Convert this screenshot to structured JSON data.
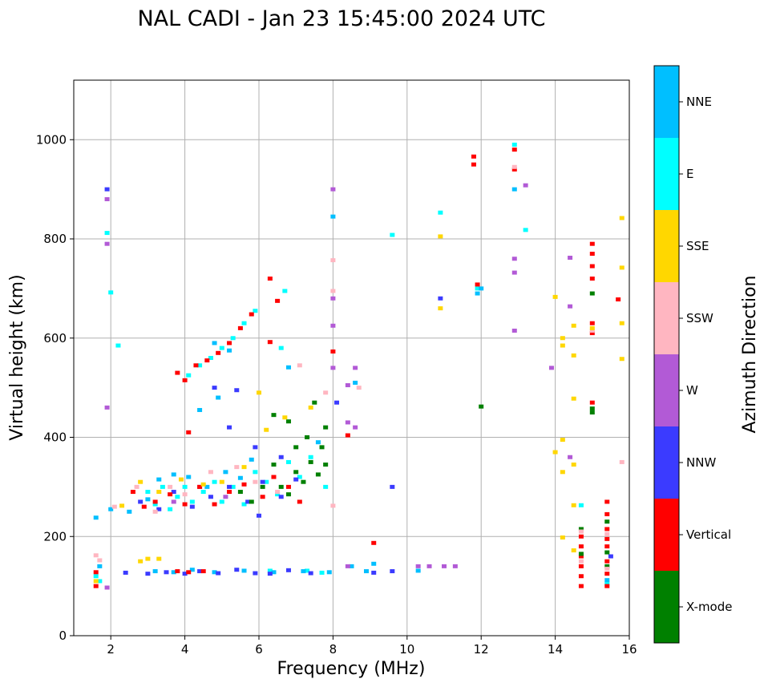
{
  "chart_data": {
    "type": "scatter",
    "title": "NAL CADI - Jan 23 15:45:00 2024 UTC",
    "xlabel": "Frequency (MHz)",
    "ylabel": "Virtual height (km)",
    "xlim": [
      1,
      16
    ],
    "ylim": [
      0,
      1120
    ],
    "xticks": [
      2,
      4,
      6,
      8,
      10,
      12,
      14,
      16
    ],
    "yticks": [
      0,
      200,
      400,
      600,
      800,
      1000
    ],
    "grid": true,
    "colorbar": {
      "label": "Azimuth Direction",
      "categories": [
        {
          "name": "X-mode",
          "color": "#008000"
        },
        {
          "name": "Vertical",
          "color": "#ff0000"
        },
        {
          "name": "NNW",
          "color": "#3b3bff"
        },
        {
          "name": "W",
          "color": "#b25ad6"
        },
        {
          "name": "SSW",
          "color": "#ffb6c1"
        },
        {
          "name": "SSE",
          "color": "#ffd700"
        },
        {
          "name": "E",
          "color": "#00ffff"
        },
        {
          "name": "NNE",
          "color": "#00bfff"
        }
      ]
    },
    "series": [
      {
        "name": "E",
        "points": [
          [
            1.9,
            812
          ],
          [
            2.0,
            692
          ],
          [
            2.2,
            585
          ],
          [
            3.0,
            290
          ],
          [
            3.2,
            265
          ],
          [
            3.4,
            300
          ],
          [
            3.6,
            255
          ],
          [
            3.8,
            280
          ],
          [
            4.0,
            300
          ],
          [
            4.2,
            270
          ],
          [
            4.5,
            290
          ],
          [
            4.8,
            310
          ],
          [
            5.0,
            270
          ],
          [
            5.3,
            300
          ],
          [
            5.6,
            265
          ],
          [
            5.9,
            330
          ],
          [
            6.2,
            310
          ],
          [
            6.5,
            285
          ],
          [
            6.8,
            350
          ],
          [
            7.1,
            320
          ],
          [
            7.4,
            360
          ],
          [
            7.8,
            300
          ],
          [
            4.1,
            525
          ],
          [
            4.4,
            545
          ],
          [
            4.7,
            560
          ],
          [
            5.0,
            580
          ],
          [
            5.3,
            600
          ],
          [
            5.6,
            630
          ],
          [
            5.9,
            655
          ],
          [
            6.7,
            695
          ],
          [
            6.6,
            580
          ],
          [
            9.6,
            808
          ],
          [
            10.9,
            853
          ],
          [
            12.9,
            990
          ],
          [
            13.2,
            818
          ],
          [
            11.9,
            700
          ],
          [
            14.7,
            263
          ],
          [
            15.4,
            105
          ],
          [
            6.3,
            131
          ],
          [
            7.3,
            131
          ],
          [
            7.7,
            127
          ],
          [
            1.6,
            120
          ],
          [
            1.7,
            110
          ]
        ]
      },
      {
        "name": "NNE",
        "points": [
          [
            1.6,
            238
          ],
          [
            2.0,
            255
          ],
          [
            2.5,
            250
          ],
          [
            3.0,
            275
          ],
          [
            3.3,
            315
          ],
          [
            3.7,
            325
          ],
          [
            4.1,
            320
          ],
          [
            4.6,
            300
          ],
          [
            5.1,
            330
          ],
          [
            5.5,
            318
          ],
          [
            5.8,
            355
          ],
          [
            7.6,
            390
          ],
          [
            4.4,
            455
          ],
          [
            4.9,
            480
          ],
          [
            6.8,
            541
          ],
          [
            4.8,
            590
          ],
          [
            5.2,
            575
          ],
          [
            8.0,
            845
          ],
          [
            8.6,
            510
          ],
          [
            12.9,
            900
          ],
          [
            11.9,
            690
          ],
          [
            12.0,
            700
          ],
          [
            3.2,
            130
          ],
          [
            3.7,
            128
          ],
          [
            4.2,
            133
          ],
          [
            4.8,
            128
          ],
          [
            5.6,
            131
          ],
          [
            6.4,
            128
          ],
          [
            7.2,
            130
          ],
          [
            7.9,
            128
          ],
          [
            8.5,
            140
          ],
          [
            8.9,
            130
          ],
          [
            9.1,
            145
          ],
          [
            10.3,
            131
          ],
          [
            15.4,
            112
          ],
          [
            1.7,
            140
          ]
        ]
      },
      {
        "name": "NNW",
        "points": [
          [
            1.9,
            900
          ],
          [
            2.8,
            270
          ],
          [
            3.3,
            255
          ],
          [
            3.7,
            290
          ],
          [
            4.2,
            260
          ],
          [
            4.7,
            280
          ],
          [
            5.2,
            300
          ],
          [
            5.7,
            270
          ],
          [
            6.1,
            310
          ],
          [
            6.6,
            280
          ],
          [
            7.0,
            315
          ],
          [
            5.2,
            420
          ],
          [
            5.9,
            380
          ],
          [
            6.0,
            242
          ],
          [
            4.8,
            500
          ],
          [
            5.4,
            495
          ],
          [
            6.6,
            360
          ],
          [
            8.1,
            470
          ],
          [
            2.4,
            127
          ],
          [
            3.0,
            125
          ],
          [
            3.5,
            128
          ],
          [
            4.0,
            125
          ],
          [
            4.4,
            130
          ],
          [
            4.9,
            126
          ],
          [
            5.4,
            133
          ],
          [
            5.9,
            126
          ],
          [
            6.3,
            125
          ],
          [
            6.8,
            132
          ],
          [
            7.4,
            126
          ],
          [
            9.1,
            127
          ],
          [
            9.6,
            300
          ],
          [
            9.6,
            130
          ],
          [
            10.9,
            680
          ],
          [
            15.5,
            160
          ]
        ]
      },
      {
        "name": "W",
        "points": [
          [
            1.9,
            880
          ],
          [
            1.9,
            790
          ],
          [
            1.9,
            460
          ],
          [
            8.0,
            900
          ],
          [
            8.0,
            680
          ],
          [
            8.0,
            625
          ],
          [
            8.0,
            540
          ],
          [
            8.4,
            505
          ],
          [
            8.4,
            430
          ],
          [
            8.6,
            420
          ],
          [
            8.6,
            540
          ],
          [
            10.3,
            140
          ],
          [
            10.6,
            140
          ],
          [
            11.0,
            140
          ],
          [
            11.3,
            140
          ],
          [
            12.9,
            760
          ],
          [
            12.9,
            732
          ],
          [
            12.9,
            615
          ],
          [
            13.2,
            908
          ],
          [
            13.9,
            540
          ],
          [
            14.4,
            762
          ],
          [
            14.4,
            664
          ],
          [
            14.4,
            360
          ],
          [
            3.7,
            270
          ],
          [
            4.4,
            300
          ],
          [
            5.1,
            280
          ],
          [
            8.4,
            140
          ],
          [
            1.9,
            97
          ]
        ]
      },
      {
        "name": "Vertical",
        "points": [
          [
            2.6,
            290
          ],
          [
            2.9,
            260
          ],
          [
            3.2,
            270
          ],
          [
            3.6,
            285
          ],
          [
            4.0,
            265
          ],
          [
            4.4,
            300
          ],
          [
            4.8,
            265
          ],
          [
            5.2,
            290
          ],
          [
            5.6,
            305
          ],
          [
            6.1,
            280
          ],
          [
            6.4,
            320
          ],
          [
            6.8,
            300
          ],
          [
            7.1,
            270
          ],
          [
            3.8,
            530
          ],
          [
            4.0,
            515
          ],
          [
            4.3,
            545
          ],
          [
            4.6,
            555
          ],
          [
            4.9,
            570
          ],
          [
            5.2,
            590
          ],
          [
            5.5,
            620
          ],
          [
            5.8,
            648
          ],
          [
            6.3,
            720
          ],
          [
            6.5,
            675
          ],
          [
            6.3,
            592
          ],
          [
            4.1,
            410
          ],
          [
            8.0,
            573
          ],
          [
            8.4,
            404
          ],
          [
            9.1,
            187
          ],
          [
            3.8,
            130
          ],
          [
            4.1,
            128
          ],
          [
            4.5,
            130
          ],
          [
            11.8,
            966
          ],
          [
            11.8,
            950
          ],
          [
            12.9,
            980
          ],
          [
            12.9,
            940
          ],
          [
            11.9,
            708
          ],
          [
            15.0,
            790
          ],
          [
            15.0,
            770
          ],
          [
            15.0,
            745
          ],
          [
            15.0,
            720
          ],
          [
            15.0,
            630
          ],
          [
            15.0,
            610
          ],
          [
            15.0,
            470
          ],
          [
            15.7,
            678
          ],
          [
            14.7,
            200
          ],
          [
            14.7,
            180
          ],
          [
            14.7,
            160
          ],
          [
            14.7,
            140
          ],
          [
            14.7,
            120
          ],
          [
            14.7,
            100
          ],
          [
            15.4,
            270
          ],
          [
            15.4,
            245
          ],
          [
            15.4,
            215
          ],
          [
            15.4,
            195
          ],
          [
            15.4,
            180
          ],
          [
            15.4,
            150
          ],
          [
            15.4,
            125
          ],
          [
            15.4,
            100
          ],
          [
            1.6,
            128
          ],
          [
            1.6,
            100
          ]
        ]
      },
      {
        "name": "X-mode",
        "points": [
          [
            5.5,
            290
          ],
          [
            5.8,
            270
          ],
          [
            6.1,
            300
          ],
          [
            6.4,
            345
          ],
          [
            6.6,
            300
          ],
          [
            6.8,
            285
          ],
          [
            7.0,
            330
          ],
          [
            7.2,
            310
          ],
          [
            7.4,
            350
          ],
          [
            7.6,
            325
          ],
          [
            7.8,
            345
          ],
          [
            6.4,
            445
          ],
          [
            6.8,
            432
          ],
          [
            7.0,
            380
          ],
          [
            7.3,
            400
          ],
          [
            7.5,
            470
          ],
          [
            7.7,
            380
          ],
          [
            7.8,
            420
          ],
          [
            12.0,
            462
          ],
          [
            15.0,
            458
          ],
          [
            15.0,
            450
          ],
          [
            15.0,
            690
          ],
          [
            15.4,
            230
          ],
          [
            15.4,
            168
          ],
          [
            15.4,
            140
          ],
          [
            14.7,
            215
          ],
          [
            14.7,
            165
          ]
        ]
      },
      {
        "name": "SSW",
        "points": [
          [
            2.1,
            260
          ],
          [
            2.7,
            300
          ],
          [
            3.2,
            250
          ],
          [
            3.6,
            300
          ],
          [
            4.0,
            285
          ],
          [
            4.7,
            330
          ],
          [
            5.4,
            340
          ],
          [
            5.9,
            310
          ],
          [
            6.5,
            290
          ],
          [
            7.1,
            545
          ],
          [
            7.8,
            490
          ],
          [
            8.0,
            757
          ],
          [
            8.0,
            695
          ],
          [
            8.0,
            262
          ],
          [
            8.7,
            500
          ],
          [
            12.9,
            945
          ],
          [
            15.0,
            615
          ],
          [
            15.8,
            350
          ],
          [
            14.7,
            210
          ],
          [
            14.7,
            150
          ],
          [
            15.4,
            205
          ],
          [
            15.4,
            135
          ],
          [
            1.6,
            162
          ],
          [
            1.7,
            152
          ]
        ]
      },
      {
        "name": "SSE",
        "points": [
          [
            2.3,
            262
          ],
          [
            2.8,
            310
          ],
          [
            3.3,
            290
          ],
          [
            3.9,
            315
          ],
          [
            4.5,
            305
          ],
          [
            5.0,
            310
          ],
          [
            5.6,
            340
          ],
          [
            6.0,
            490
          ],
          [
            6.2,
            415
          ],
          [
            6.7,
            440
          ],
          [
            7.4,
            460
          ],
          [
            10.9,
            805
          ],
          [
            10.9,
            660
          ],
          [
            14.0,
            683
          ],
          [
            14.2,
            600
          ],
          [
            14.2,
            585
          ],
          [
            14.2,
            395
          ],
          [
            14.0,
            370
          ],
          [
            14.2,
            330
          ],
          [
            14.5,
            625
          ],
          [
            14.5,
            565
          ],
          [
            14.5,
            478
          ],
          [
            14.5,
            345
          ],
          [
            14.5,
            172
          ],
          [
            14.2,
            198
          ],
          [
            14.5,
            263
          ],
          [
            15.8,
            842
          ],
          [
            15.8,
            742
          ],
          [
            15.8,
            630
          ],
          [
            15.8,
            558
          ],
          [
            15.0,
            620
          ],
          [
            3.0,
            155
          ],
          [
            3.3,
            155
          ],
          [
            1.6,
            110
          ],
          [
            2.8,
            150
          ]
        ]
      }
    ]
  }
}
